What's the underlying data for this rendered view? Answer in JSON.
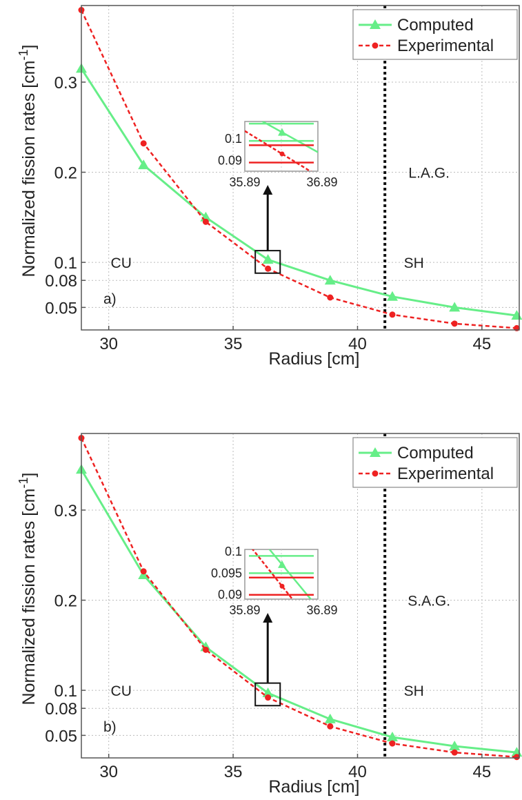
{
  "chart_data": [
    {
      "type": "line",
      "panel_label": "a)",
      "xlabel": "Radius [cm]",
      "ylabel": "Normalized fission rates [cm",
      "ylabel_sup": "-1",
      "ylabel_close": "]",
      "xlim": [
        28.9,
        46.5
      ],
      "ylim": [
        0.025,
        0.385
      ],
      "x_ticks": [
        30,
        35,
        40,
        45
      ],
      "x_tick_labels": [
        "30",
        "35",
        "40",
        "45"
      ],
      "y_ticks": [
        0.05,
        0.08,
        0.1,
        0.2,
        0.3
      ],
      "y_tick_labels": [
        "0.05",
        "0.08",
        "0.1",
        "0.2",
        "0.3"
      ],
      "grid": true,
      "legend": "top-right",
      "series": [
        {
          "name": "Computed",
          "color": "#66ee88",
          "marker": "triangle",
          "x": [
            28.9,
            31.4,
            33.9,
            36.4,
            38.9,
            41.4,
            43.9,
            46.4
          ],
          "y": [
            0.315,
            0.208,
            0.15,
            0.103,
            0.08,
            0.062,
            0.05,
            0.041
          ]
        },
        {
          "name": "Experimental",
          "color": "#ee2222",
          "marker": "dot",
          "x": [
            28.9,
            31.4,
            33.9,
            36.4,
            38.9,
            41.4,
            43.9,
            46.4
          ],
          "y": [
            0.38,
            0.232,
            0.145,
            0.093,
            0.061,
            0.042,
            0.032,
            0.027
          ]
        }
      ],
      "vertical_line_x": 41.1,
      "region_labels": {
        "left": "CU",
        "right": "SH",
        "material": "L.A.G."
      },
      "zoom_box": {
        "x": [
          35.89,
          36.89
        ],
        "y": [
          0.088,
          0.113
        ]
      },
      "inset": {
        "x_tick_labels": [
          "35.89",
          "36.89"
        ],
        "y_tick_labels": [
          "0.1",
          "0.09"
        ],
        "y_ticks": [
          0.1,
          0.09
        ],
        "ylim": [
          0.085,
          0.108
        ]
      }
    },
    {
      "type": "line",
      "panel_label": "b)",
      "xlabel": "Radius [cm]",
      "ylabel": "Normalized fission rates [cm",
      "ylabel_sup": "-1",
      "ylabel_close": "]",
      "xlim": [
        28.9,
        46.5
      ],
      "ylim": [
        0.025,
        0.385
      ],
      "x_ticks": [
        30,
        35,
        40,
        45
      ],
      "x_tick_labels": [
        "30",
        "35",
        "40",
        "45"
      ],
      "y_ticks": [
        0.05,
        0.08,
        0.1,
        0.2,
        0.3
      ],
      "y_tick_labels": [
        "0.05",
        "0.08",
        "0.1",
        "0.2",
        "0.3"
      ],
      "grid": true,
      "legend": "top-right",
      "series": [
        {
          "name": "Computed",
          "color": "#66ee88",
          "marker": "triangle",
          "x": [
            28.9,
            31.4,
            33.9,
            36.4,
            38.9,
            41.4,
            43.9,
            46.4
          ],
          "y": [
            0.345,
            0.228,
            0.148,
            0.097,
            0.068,
            0.048,
            0.038,
            0.031
          ]
        },
        {
          "name": "Experimental",
          "color": "#ee2222",
          "marker": "dot",
          "x": [
            28.9,
            31.4,
            33.9,
            36.4,
            38.9,
            41.4,
            43.9,
            46.4
          ],
          "y": [
            0.38,
            0.232,
            0.145,
            0.092,
            0.06,
            0.041,
            0.031,
            0.026
          ]
        }
      ],
      "vertical_line_x": 41.1,
      "region_labels": {
        "left": "CU",
        "right": "SH",
        "material": "S.A.G."
      },
      "zoom_box": {
        "x": [
          35.89,
          36.89
        ],
        "y": [
          0.083,
          0.108
        ]
      },
      "inset": {
        "x_tick_labels": [
          "35.89",
          "36.89"
        ],
        "y_tick_labels": [
          "0.1",
          "0.095",
          "0.09"
        ],
        "y_ticks": [
          0.1,
          0.095,
          0.09
        ],
        "ylim": [
          0.089,
          0.1005
        ]
      }
    }
  ]
}
